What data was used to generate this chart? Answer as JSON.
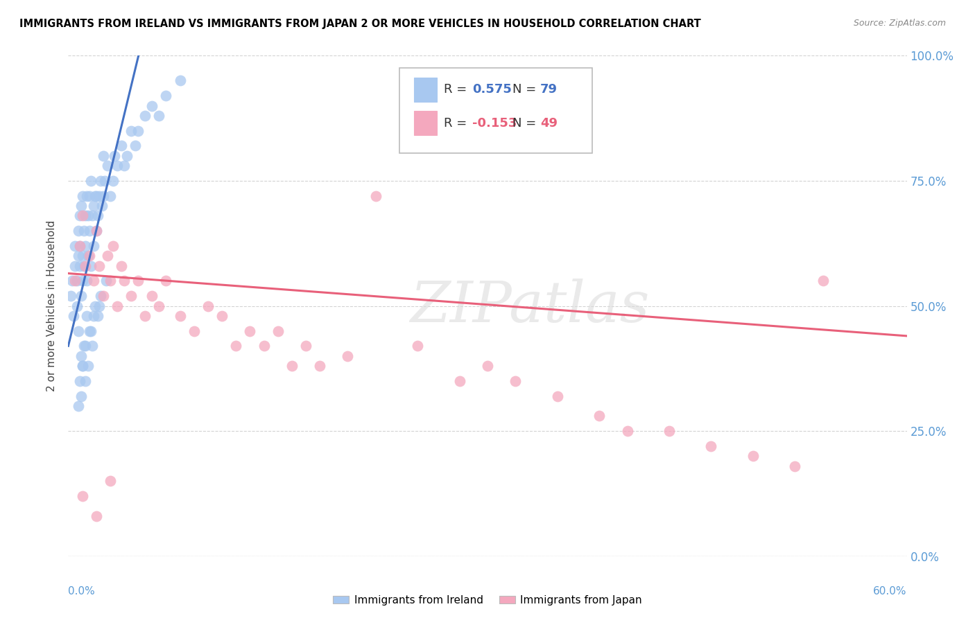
{
  "title": "IMMIGRANTS FROM IRELAND VS IMMIGRANTS FROM JAPAN 2 OR MORE VEHICLES IN HOUSEHOLD CORRELATION CHART",
  "source": "Source: ZipAtlas.com",
  "ylabel": "2 or more Vehicles in Household",
  "ytick_labels": [
    "0.0%",
    "25.0%",
    "50.0%",
    "75.0%",
    "100.0%"
  ],
  "ytick_values": [
    0.0,
    0.25,
    0.5,
    0.75,
    1.0
  ],
  "xmin": 0.0,
  "xmax": 0.6,
  "ymin": 0.0,
  "ymax": 1.0,
  "ireland_R": 0.575,
  "ireland_N": 79,
  "japan_R": -0.153,
  "japan_N": 49,
  "ireland_color": "#A8C8F0",
  "japan_color": "#F4A8BE",
  "ireland_line_color": "#4472C4",
  "japan_line_color": "#E8607A",
  "watermark_text": "ZIPatlas",
  "ireland_x": [
    0.002,
    0.003,
    0.004,
    0.005,
    0.005,
    0.006,
    0.006,
    0.007,
    0.007,
    0.007,
    0.008,
    0.008,
    0.008,
    0.009,
    0.009,
    0.01,
    0.01,
    0.01,
    0.011,
    0.011,
    0.012,
    0.012,
    0.013,
    0.013,
    0.014,
    0.014,
    0.015,
    0.015,
    0.016,
    0.016,
    0.017,
    0.018,
    0.018,
    0.019,
    0.02,
    0.02,
    0.021,
    0.022,
    0.023,
    0.024,
    0.025,
    0.025,
    0.026,
    0.028,
    0.03,
    0.032,
    0.033,
    0.035,
    0.038,
    0.04,
    0.042,
    0.045,
    0.048,
    0.05,
    0.055,
    0.06,
    0.065,
    0.07,
    0.08,
    0.009,
    0.01,
    0.011,
    0.012,
    0.013,
    0.014,
    0.016,
    0.017,
    0.019,
    0.021,
    0.023,
    0.007,
    0.008,
    0.009,
    0.01,
    0.012,
    0.015,
    0.018,
    0.022,
    0.027
  ],
  "ireland_y": [
    0.52,
    0.55,
    0.48,
    0.58,
    0.62,
    0.5,
    0.55,
    0.6,
    0.65,
    0.45,
    0.58,
    0.62,
    0.68,
    0.52,
    0.7,
    0.55,
    0.6,
    0.72,
    0.58,
    0.65,
    0.62,
    0.68,
    0.55,
    0.72,
    0.6,
    0.68,
    0.65,
    0.72,
    0.58,
    0.75,
    0.68,
    0.62,
    0.7,
    0.72,
    0.65,
    0.72,
    0.68,
    0.72,
    0.75,
    0.7,
    0.72,
    0.8,
    0.75,
    0.78,
    0.72,
    0.75,
    0.8,
    0.78,
    0.82,
    0.78,
    0.8,
    0.85,
    0.82,
    0.85,
    0.88,
    0.9,
    0.88,
    0.92,
    0.95,
    0.4,
    0.38,
    0.42,
    0.35,
    0.48,
    0.38,
    0.45,
    0.42,
    0.5,
    0.48,
    0.52,
    0.3,
    0.35,
    0.32,
    0.38,
    0.42,
    0.45,
    0.48,
    0.5,
    0.55
  ],
  "japan_x": [
    0.005,
    0.008,
    0.01,
    0.012,
    0.015,
    0.018,
    0.02,
    0.022,
    0.025,
    0.028,
    0.03,
    0.032,
    0.035,
    0.038,
    0.04,
    0.045,
    0.05,
    0.055,
    0.06,
    0.065,
    0.07,
    0.08,
    0.09,
    0.1,
    0.11,
    0.12,
    0.13,
    0.14,
    0.15,
    0.16,
    0.17,
    0.18,
    0.2,
    0.22,
    0.25,
    0.28,
    0.3,
    0.32,
    0.35,
    0.38,
    0.4,
    0.43,
    0.46,
    0.49,
    0.52,
    0.54,
    0.01,
    0.02,
    0.03
  ],
  "japan_y": [
    0.55,
    0.62,
    0.68,
    0.58,
    0.6,
    0.55,
    0.65,
    0.58,
    0.52,
    0.6,
    0.55,
    0.62,
    0.5,
    0.58,
    0.55,
    0.52,
    0.55,
    0.48,
    0.52,
    0.5,
    0.55,
    0.48,
    0.45,
    0.5,
    0.48,
    0.42,
    0.45,
    0.42,
    0.45,
    0.38,
    0.42,
    0.38,
    0.4,
    0.72,
    0.42,
    0.35,
    0.38,
    0.35,
    0.32,
    0.28,
    0.25,
    0.25,
    0.22,
    0.2,
    0.18,
    0.55,
    0.12,
    0.08,
    0.15
  ],
  "ireland_line_x0": 0.0,
  "ireland_line_x1": 0.052,
  "ireland_line_y0": 0.42,
  "ireland_line_y1": 1.02,
  "japan_line_x0": 0.0,
  "japan_line_x1": 0.6,
  "japan_line_y0": 0.565,
  "japan_line_y1": 0.44
}
